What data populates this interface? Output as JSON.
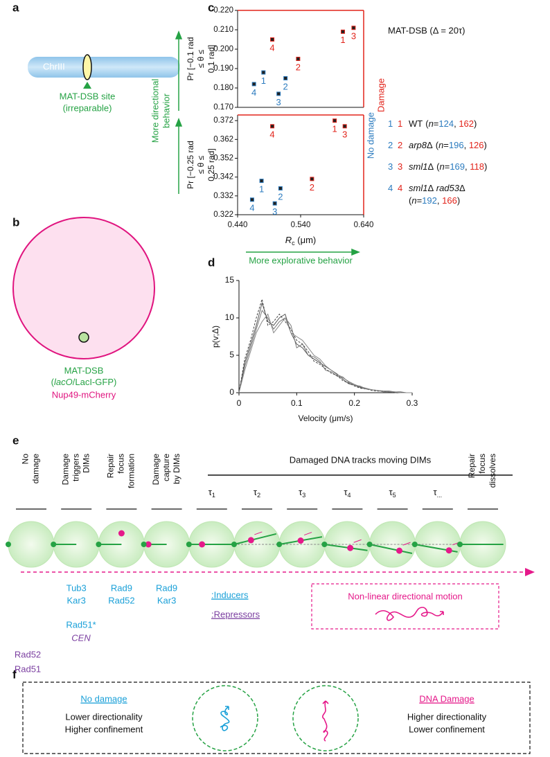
{
  "panel_labels": [
    "a",
    "b",
    "c",
    "d",
    "e",
    "f"
  ],
  "panel_a": {
    "chromosome": "ChrIII",
    "site": [
      "MAT-DSB site",
      "(irreparable)"
    ]
  },
  "panel_b": {
    "locus": "MAT-DSB",
    "reporter": {
      "open": "(",
      "italic": "lacO",
      "rest": "/LacI-GFP)"
    },
    "nuclear_marker": "Nup49-mCherry"
  },
  "panel_c": {
    "condition": "MAT-DSB (Δ = 20τ)",
    "y_arrow": [
      "More directional",
      "behavior"
    ],
    "x_arrow": "More explorative behavior",
    "n_format": {
      "open": "(",
      "var": "n",
      "eq": "=",
      "sep": ", ",
      "close": ")"
    },
    "legend": [
      {
        "id": "1",
        "name": [
          {
            "text": "WT",
            "italic": false
          }
        ],
        "n": [
          124,
          162
        ]
      },
      {
        "id": "2",
        "name": [
          {
            "text": "arp8",
            "italic": true
          },
          {
            "text": "Δ",
            "italic": false
          }
        ],
        "n": [
          196,
          126
        ]
      },
      {
        "id": "3",
        "name": [
          {
            "text": "sml1",
            "italic": true
          },
          {
            "text": "Δ",
            "italic": false
          }
        ],
        "n": [
          169,
          118
        ]
      },
      {
        "id": "4",
        "name": [
          {
            "text": "sml1",
            "italic": true
          },
          {
            "text": "Δ",
            "italic": false
          },
          {
            "text": " rad53",
            "italic": true
          },
          {
            "text": "Δ",
            "italic": false
          }
        ],
        "n": [
          192,
          166
        ]
      }
    ]
  },
  "chart_data": [
    {
      "type": "scatter",
      "ylabel": [
        "Pr [−0.1 rad",
        "≤ θ ≤",
        "0.1 rad]"
      ],
      "xlim": [
        0.44,
        0.64
      ],
      "ylim": [
        0.17,
        0.22
      ],
      "yticks": [
        {
          "value": 0.17,
          "label": "0.170"
        },
        {
          "value": 0.18,
          "label": "0.180"
        },
        {
          "value": 0.19,
          "label": "0.190"
        },
        {
          "value": 0.2,
          "label": "0.200"
        },
        {
          "value": 0.21,
          "label": "0.210"
        },
        {
          "value": 0.22,
          "label": "0.220"
        }
      ],
      "series": [
        {
          "name": "No damage",
          "color": "#2b7bbf",
          "labels": [
            "1",
            "2",
            "3",
            "4"
          ],
          "x": [
            0.481,
            0.516,
            0.505,
            0.466
          ],
          "values": [
            0.188,
            0.185,
            0.177,
            0.182
          ]
        },
        {
          "name": "Damage",
          "color": "#e2231a",
          "labels": [
            "1",
            "2",
            "3",
            "4"
          ],
          "x": [
            0.607,
            0.536,
            0.624,
            0.495
          ],
          "values": [
            0.209,
            0.195,
            0.211,
            0.205
          ]
        }
      ]
    },
    {
      "type": "scatter",
      "ylabel": [
        "Pr [−0.25 rad",
        "≤ θ ≤",
        "0.25 rad]"
      ],
      "xlabel": [
        "R",
        "c",
        " (μm)"
      ],
      "xlim": [
        0.44,
        0.64
      ],
      "xticks": [
        {
          "value": 0.44,
          "label": "0.440"
        },
        {
          "value": 0.54,
          "label": "0.540"
        },
        {
          "value": 0.64,
          "label": "0.640"
        }
      ],
      "ylim": [
        0.322,
        0.375
      ],
      "yticks": [
        {
          "value": 0.322,
          "label": "0.322"
        },
        {
          "value": 0.332,
          "label": "0.332"
        },
        {
          "value": 0.342,
          "label": "0.342"
        },
        {
          "value": 0.352,
          "label": "0.352"
        },
        {
          "value": 0.362,
          "label": "0.362"
        },
        {
          "value": 0.372,
          "label": "0.372"
        }
      ],
      "series": [
        {
          "color": "#2b7bbf",
          "labels": [
            "1",
            "2",
            "3",
            "4"
          ],
          "x": [
            0.478,
            0.508,
            0.499,
            0.463
          ],
          "values": [
            0.34,
            0.336,
            0.328,
            0.33
          ]
        },
        {
          "color": "#e2231a",
          "labels": [
            "1",
            "2",
            "3",
            "4"
          ],
          "x": [
            0.594,
            0.558,
            0.61,
            0.495
          ],
          "values": [
            0.372,
            0.341,
            0.369,
            0.369
          ]
        }
      ]
    },
    {
      "type": "line",
      "xlabel": "Velocity (μm/s)",
      "ylabel": "p(v;Δ)",
      "xlim": [
        0,
        0.3
      ],
      "xticks": [
        0,
        0.1,
        0.2,
        0.3
      ],
      "ylim": [
        0,
        15
      ],
      "yticks": [
        0,
        5,
        10,
        15
      ],
      "x": [
        0,
        0.01,
        0.02,
        0.03,
        0.04,
        0.05,
        0.06,
        0.07,
        0.08,
        0.09,
        0.1,
        0.11,
        0.12,
        0.13,
        0.14,
        0.15,
        0.16,
        0.17,
        0.18,
        0.19,
        0.2,
        0.21,
        0.22,
        0.23,
        0.24,
        0.25,
        0.26,
        0.27,
        0.28,
        0.29,
        0.3
      ],
      "series": [
        {
          "color": "#555555",
          "dashed": false,
          "values": [
            0,
            4,
            6.5,
            9,
            12,
            9.5,
            9,
            10,
            10.5,
            8,
            6.5,
            6,
            5,
            4.5,
            4,
            3.5,
            3,
            2.5,
            1.8,
            1.2,
            1,
            0.7,
            0.5,
            0.4,
            0.3,
            0.2,
            0.2,
            0.1,
            0.1,
            0,
            0
          ]
        },
        {
          "color": "#777777",
          "dashed": false,
          "values": [
            0,
            3.5,
            6,
            8.5,
            11,
            10,
            8.5,
            9.5,
            10,
            9,
            6,
            6.5,
            5,
            4.8,
            4.2,
            3,
            2.8,
            2.2,
            2,
            1.5,
            1.1,
            0.8,
            0.6,
            0.4,
            0.3,
            0.2,
            0.1,
            0.1,
            0,
            0,
            0
          ]
        },
        {
          "color": "#444444",
          "dashed": true,
          "values": [
            0,
            4.5,
            7,
            10,
            12.5,
            9,
            9.5,
            10.5,
            9.5,
            8.5,
            7,
            6.5,
            5.5,
            4.2,
            3.8,
            3.2,
            2.6,
            2.3,
            1.6,
            1.3,
            0.9,
            0.6,
            0.5,
            0.3,
            0.2,
            0.2,
            0.1,
            0,
            0,
            0,
            0
          ]
        },
        {
          "color": "#888888",
          "dashed": false,
          "values": [
            0,
            3,
            5.5,
            8,
            9.5,
            10.5,
            8,
            9,
            10,
            8,
            7.5,
            7,
            6,
            5,
            4.5,
            3.6,
            3,
            2.4,
            2.1,
            1.4,
            1,
            0.9,
            0.5,
            0.4,
            0.3,
            0.1,
            0.1,
            0.1,
            0,
            0,
            0
          ]
        }
      ]
    }
  ],
  "panel_e": {
    "header": "Damaged DNA tracks moving DIMs",
    "stages": [
      {
        "lines": [
          "No",
          "damage"
        ]
      },
      {
        "lines": [
          "Damage",
          "triggers",
          "DIMs"
        ]
      },
      {
        "lines": [
          "Repair",
          "focus",
          "formation"
        ]
      },
      {
        "lines": [
          "Damage",
          "capture",
          "by DIMs"
        ]
      },
      {
        "tau": "τ",
        "sub": "1"
      },
      {
        "tau": "τ",
        "sub": "2"
      },
      {
        "tau": "τ",
        "sub": "3"
      },
      {
        "tau": "τ",
        "sub": "4"
      },
      {
        "tau": "τ",
        "sub": "5"
      },
      {
        "tau": "τ",
        "sub": "..."
      },
      {
        "lines": [
          "Repair",
          "focus",
          "dissolves"
        ]
      }
    ],
    "inducers": [
      [
        "Tub3",
        "Kar3"
      ],
      [
        "Rad9",
        "Rad52"
      ],
      [
        "Rad9",
        "Kar3"
      ]
    ],
    "inducers_label": ":Inducers",
    "repressors_label": ":Repressors",
    "stage2_extra": "Rad51*",
    "cen": "CEN",
    "no_damage_repressors": [
      "Rad52",
      "Rad51"
    ],
    "motion_box": "Non-linear directional motion"
  },
  "panel_f": {
    "left": {
      "title": "No damage",
      "lines": [
        "Lower directionality",
        "Higher confinement"
      ]
    },
    "right": {
      "title": "DNA Damage",
      "lines": [
        "Higher directionality",
        "Lower confinement"
      ]
    }
  }
}
